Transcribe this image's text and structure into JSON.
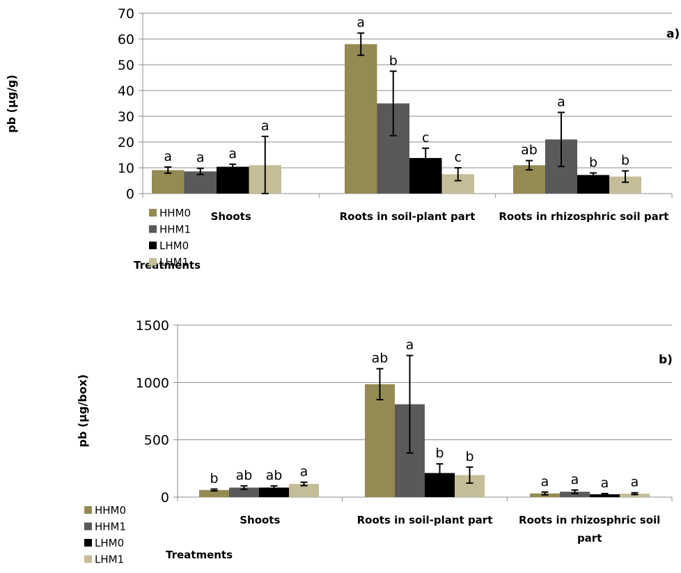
{
  "chart_data": [
    {
      "type": "bar",
      "panel_label": "a)",
      "ylabel": "pb (µg/g)",
      "xlabel": "Treatments",
      "ylim": [
        0,
        70
      ],
      "yticks": [
        0,
        10,
        20,
        30,
        40,
        50,
        60,
        70
      ],
      "grid": true,
      "legend_position": "left-bottom",
      "categories": [
        "Shoots",
        "Roots in soil-plant part",
        "Roots in rhizosphric soil part"
      ],
      "series": [
        {
          "name": "HHM0",
          "color": "#948a54",
          "values": [
            9.1,
            58,
            11
          ],
          "errors": [
            1.2,
            4.3,
            1.8
          ],
          "letters": [
            "a",
            "a",
            "ab"
          ]
        },
        {
          "name": "HHM1",
          "color": "#595959",
          "values": [
            8.6,
            35,
            21
          ],
          "errors": [
            1.2,
            12.5,
            10.5
          ],
          "letters": [
            "a",
            "b",
            "a"
          ]
        },
        {
          "name": "LHM0",
          "color": "#000000",
          "values": [
            10.4,
            13.8,
            7.2
          ],
          "errors": [
            1.0,
            3.8,
            0.8
          ],
          "letters": [
            "a",
            "c",
            "b"
          ]
        },
        {
          "name": "LHM1",
          "color": "#c4bd97",
          "values": [
            11,
            7.5,
            6.6
          ],
          "errors": [
            11.2,
            2.5,
            2.2
          ],
          "letters": [
            "a",
            "c",
            "b"
          ]
        }
      ]
    },
    {
      "type": "bar",
      "panel_label": "b)",
      "ylabel": "pb (µg/box)",
      "xlabel": "Treatments",
      "ylim": [
        0,
        1500
      ],
      "yticks": [
        0,
        500,
        1000,
        1500
      ],
      "grid": true,
      "legend_position": "left-bottom",
      "categories": [
        "Shoots",
        "Roots in soil-plant part",
        "Roots in rhizosphric soil part"
      ],
      "series": [
        {
          "name": "HHM0",
          "color": "#948a54",
          "values": [
            62,
            985,
            32
          ],
          "errors": [
            8,
            135,
            12
          ],
          "letters": [
            "b",
            "ab",
            "a"
          ]
        },
        {
          "name": "HHM1",
          "color": "#595959",
          "values": [
            83,
            810,
            47
          ],
          "errors": [
            15,
            425,
            15
          ],
          "letters": [
            "ab",
            "a",
            "a"
          ]
        },
        {
          "name": "LHM0",
          "color": "#000000",
          "values": [
            83,
            210,
            25
          ],
          "errors": [
            15,
            80,
            6
          ],
          "letters": [
            "ab",
            "b",
            "a"
          ]
        },
        {
          "name": "LHM1",
          "color": "#c4bd97",
          "values": [
            115,
            192,
            30
          ],
          "errors": [
            15,
            70,
            8
          ],
          "letters": [
            "a",
            "b",
            "a"
          ]
        }
      ]
    }
  ]
}
